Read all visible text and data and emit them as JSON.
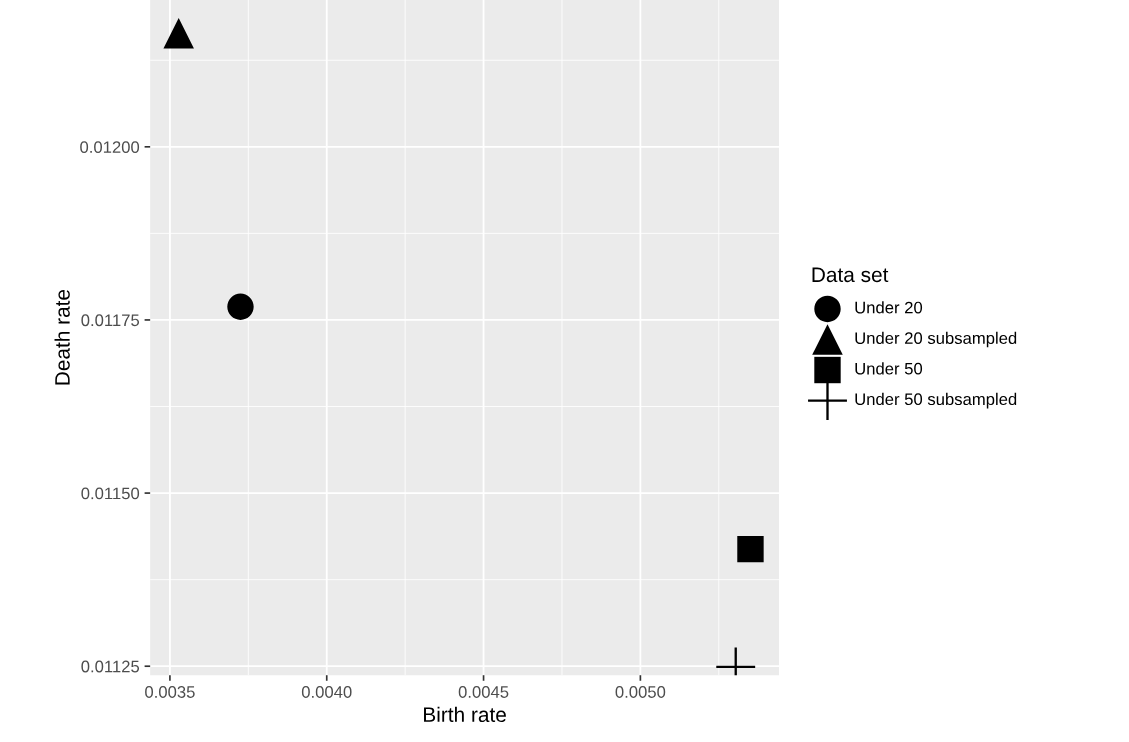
{
  "chart_data": {
    "type": "scatter",
    "xlabel": "Birth rate",
    "ylabel": "Death rate",
    "legend_title": "Data set",
    "legend": "right",
    "grid": true,
    "xlim": [
      0.003437,
      0.005442
    ],
    "ylim": [
      0.011237,
      0.012212
    ],
    "xticks": [
      {
        "value": 0.0035,
        "label": "0.0035"
      },
      {
        "value": 0.004,
        "label": "0.0040"
      },
      {
        "value": 0.0045,
        "label": "0.0045"
      },
      {
        "value": 0.005,
        "label": "0.0050"
      }
    ],
    "yticks": [
      {
        "value": 0.01125,
        "label": "0.01125"
      },
      {
        "value": 0.0115,
        "label": "0.01150"
      },
      {
        "value": 0.01175,
        "label": "0.01175"
      },
      {
        "value": 0.012,
        "label": "0.01200"
      }
    ],
    "series": [
      {
        "name": "Under 20",
        "color": "#000000",
        "marker": "circle",
        "x": [
          0.003725
        ],
        "values": [
          0.011769
        ]
      },
      {
        "name": "Under 20 subsampled",
        "color": "#000000",
        "marker": "triangle",
        "x": [
          0.003528
        ],
        "values": [
          0.012164
        ]
      },
      {
        "name": "Under 50",
        "color": "#000000",
        "marker": "square",
        "x": [
          0.005351
        ],
        "values": [
          0.011419
        ]
      },
      {
        "name": "Under 50 subsampled",
        "color": "#000000",
        "marker": "cross",
        "x": [
          0.005304
        ],
        "values": [
          0.011249
        ]
      }
    ]
  }
}
